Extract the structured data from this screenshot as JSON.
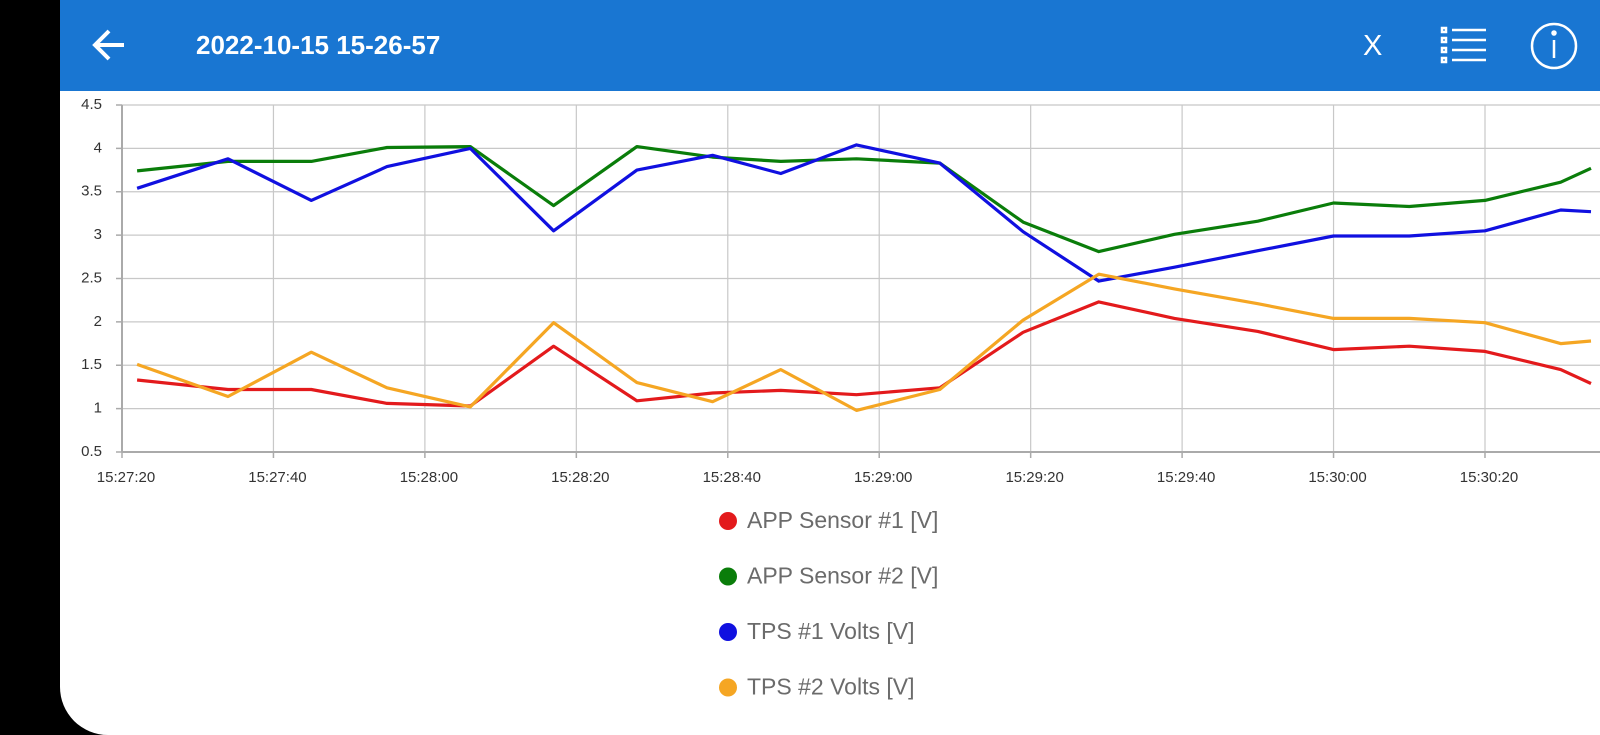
{
  "header": {
    "title": "2022-10-15 15-26-57",
    "close": "X"
  },
  "chart_data": {
    "type": "line",
    "x": [
      "15:27:22",
      "15:27:34",
      "15:27:45",
      "15:27:55",
      "15:28:06",
      "15:28:17",
      "15:28:28",
      "15:28:38",
      "15:28:47",
      "15:28:57",
      "15:29:08",
      "15:29:19",
      "15:29:29",
      "15:29:39",
      "15:29:50",
      "15:30:00",
      "15:30:10",
      "15:30:20",
      "15:30:30",
      "15:30:34"
    ],
    "series": [
      {
        "name": "APP Sensor #1 [V]",
        "color": "#e31a1c",
        "values": [
          1.33,
          1.22,
          1.22,
          1.06,
          1.03,
          1.72,
          1.09,
          1.18,
          1.21,
          1.16,
          1.24,
          1.88,
          2.23,
          2.04,
          1.89,
          1.68,
          1.72,
          1.66,
          1.45,
          1.29
        ]
      },
      {
        "name": "APP Sensor #2 [V]",
        "color": "#0a7d0a",
        "values": [
          3.74,
          3.85,
          3.85,
          4.01,
          4.02,
          3.34,
          4.02,
          3.9,
          3.85,
          3.88,
          3.83,
          3.15,
          2.81,
          3.01,
          3.16,
          3.37,
          3.33,
          3.4,
          3.61,
          3.77
        ]
      },
      {
        "name": "TPS #1 Volts [V]",
        "color": "#1010e0",
        "values": [
          3.54,
          3.88,
          3.4,
          3.79,
          4.0,
          3.05,
          3.75,
          3.92,
          3.71,
          4.04,
          3.83,
          3.04,
          2.47,
          2.63,
          2.82,
          2.99,
          2.99,
          3.05,
          3.29,
          3.27
        ]
      },
      {
        "name": "TPS #2 Volts [V]",
        "color": "#f5a623",
        "values": [
          1.51,
          1.14,
          1.65,
          1.24,
          1.02,
          1.99,
          1.3,
          1.08,
          1.45,
          0.98,
          1.22,
          2.02,
          2.55,
          2.38,
          2.21,
          2.04,
          2.04,
          1.99,
          1.75,
          1.78
        ]
      }
    ],
    "xlim": [
      "15:27:20",
      "15:30:34"
    ],
    "xticks": [
      "15:27:20",
      "15:27:40",
      "15:28:00",
      "15:28:20",
      "15:28:40",
      "15:29:00",
      "15:29:20",
      "15:29:40",
      "15:30:00",
      "15:30:20"
    ],
    "ylim": [
      0.5,
      4.5
    ],
    "yticks": [
      0.5,
      1,
      1.5,
      2,
      2.5,
      3,
      3.5,
      4,
      4.5
    ],
    "grid": true
  }
}
